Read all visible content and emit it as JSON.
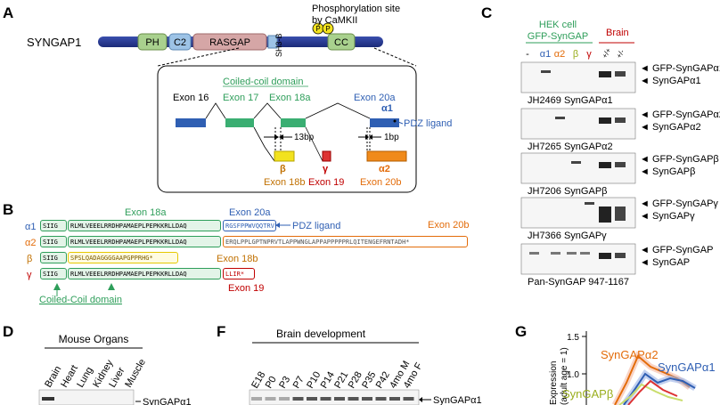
{
  "panels": {
    "A": "A",
    "B": "B",
    "C": "C",
    "D": "D",
    "F": "F",
    "G": "G"
  },
  "panelA": {
    "gene": "SYNGAP1",
    "domains": {
      "ph": "PH",
      "c2": "C2",
      "rasgap": "RASGAP",
      "sh3b": "SH3-B",
      "cc": "CC",
      "p": "P"
    },
    "phospho": {
      "line1": "Phosphorylation site",
      "line2": "by CaMKII"
    },
    "coiled": "Coiled-coil domain",
    "exons": {
      "e16": "Exon 16",
      "e17": "Exon 17",
      "e18a": "Exon 18a",
      "e20a": "Exon 20a",
      "e18b": "Exon 18b",
      "e19": "Exon 19",
      "e20b": "Exon 20b"
    },
    "a1": "α1",
    "pdz": "PDZ ligand",
    "bp13": "13bp",
    "bp1": "1bp",
    "beta": "β",
    "gamma": "γ",
    "a2": "α2"
  },
  "panelB": {
    "exon18a": "Exon 18a",
    "exon20a": "Exon 20a",
    "exon20b": "Exon 20b",
    "exon18b": "Exon 18b",
    "exon19": "Exon 19",
    "pdz": "PDZ ligand",
    "coiled": "Coiled-Coil domain",
    "iso": {
      "a1": "α1",
      "a2": "α2",
      "b": "β",
      "g": "γ"
    },
    "rows": {
      "a1": {
        "s1": "SIIG",
        "s2": "RLMLVEEELRRDHPAMAEPLPEPKKRLLDAQ",
        "s3": "RGSFPPWVQQTRV*"
      },
      "a2": {
        "s1": "SIIG",
        "s2": "RLMLVEEELRRDHPAMAEPLPEPKKRLLDAQ",
        "s3": "ERQLPPLGPTNPRVTLAPPWNGLAPPAPPPPPRLQITENGEFRNTADH*"
      },
      "b": {
        "s1": "SIIG",
        "s2": "SPSLQADAGGGGAAPGPPRHG*"
      },
      "g": {
        "s1": "SIIG",
        "s2": "RLMLVEEELRRDHPAMAEPLPEPKKRLLDAQ",
        "s3": "LLIR*"
      }
    }
  },
  "panelC": {
    "hek1": "HEK cell",
    "hek2": "GFP-SynGAP",
    "brain": "Brain",
    "lanes": [
      "-",
      "α1",
      "α2",
      "β",
      "γ"
    ],
    "brainlanes": [
      "+/+",
      "+/-"
    ],
    "blots": [
      {
        "ab": "JH2469 SynGAPα1",
        "l1": "GFP-SynGAPα1",
        "l2": "SynGAPα1"
      },
      {
        "ab": "JH7265 SynGAPα2",
        "l1": "GFP-SynGAPα2",
        "l2": "SynGAPα2"
      },
      {
        "ab": "JH7206 SynGAPβ",
        "l1": "GFP-SynGAPβ",
        "l2": "SynGAPβ"
      },
      {
        "ab": "JH7366 SynGAPγ",
        "l1": "GFP-SynGAPγ",
        "l2": "SynGAPγ"
      },
      {
        "ab": "Pan-SynGAP 947-1167",
        "l1": "GFP-SynGAP",
        "l2": "SynGAP"
      }
    ]
  },
  "panelD": {
    "title": "Mouse Organs",
    "organs": [
      "Brain",
      "Heart",
      "Lung",
      "Kidney",
      "Liver",
      "Muscle"
    ],
    "band": "SynGAPα1"
  },
  "panelF": {
    "title": "Brain development",
    "ages": [
      "E18",
      "P0",
      "P3",
      "P7",
      "P10",
      "P14",
      "P21",
      "P28",
      "P35",
      "P42",
      "4mo M",
      "4mo F"
    ],
    "band": "SynGAPα1"
  },
  "panelG": {
    "ylabel": "Expression",
    "ylabel2": "(adult age = 1)",
    "ticks": [
      "1.5",
      "1.0"
    ],
    "a2": "SynGAPα2",
    "a1": "SynGAPα1",
    "b": "SynGAPβ"
  },
  "colors": {
    "ph": "#a9d18e",
    "c2": "#9dc3e6",
    "rasgap": "#d5a6a6",
    "cc": "#a9d18e",
    "p": "#f2e21e",
    "green": "#2e9e5a",
    "blue": "#2f5fb3",
    "orange": "#e36c0a",
    "red": "#c00000",
    "yellow": "#e6c800",
    "purple": "#7030a0",
    "brown": "#c07000"
  }
}
